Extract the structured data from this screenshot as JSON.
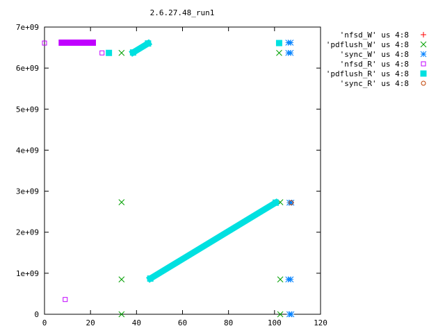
{
  "chart_data": {
    "type": "scatter",
    "title": "2.6.27.48_run1",
    "xlim": [
      0,
      120
    ],
    "ylim": [
      0,
      7000000000
    ],
    "xticks": [
      0,
      20,
      40,
      60,
      80,
      100,
      120
    ],
    "xtick_labels": [
      "0",
      "20",
      "40",
      "60",
      "80",
      "100",
      "120"
    ],
    "yticks": [
      0,
      1000000000,
      2000000000,
      3000000000,
      4000000000,
      5000000000,
      6000000000,
      7000000000
    ],
    "ytick_labels": [
      "0",
      "1e+09",
      "2e+09",
      "3e+09",
      "4e+09",
      "5e+09",
      "6e+09",
      "7e+09"
    ],
    "xlabel": "",
    "ylabel": "",
    "grid": false,
    "legend_position": "outside-top-right",
    "series": [
      {
        "name": "'nfsd_W' us 4:8",
        "marker": "plus",
        "color": "#ff0000",
        "points": [
          [
            107.3,
            2720000000
          ]
        ]
      },
      {
        "name": "'pdflush_W' us 4:8",
        "marker": "cross",
        "color": "#00a000",
        "points": [
          [
            33.5,
            6370000000
          ],
          [
            33.5,
            2730000000
          ],
          [
            33.5,
            850000000
          ],
          [
            33.5,
            0
          ],
          [
            102,
            6370000000
          ],
          [
            102.5,
            2730000000
          ],
          [
            102.5,
            850000000
          ],
          [
            102.5,
            0
          ]
        ]
      },
      {
        "name": "'sync_W' us 4:8",
        "marker": "star",
        "color": "#0080ff",
        "points": [
          [
            106,
            6620000000
          ],
          [
            107,
            6620000000
          ],
          [
            106,
            6370000000
          ],
          [
            107,
            6370000000
          ],
          [
            106.5,
            2720000000
          ],
          [
            107.3,
            2720000000
          ],
          [
            106,
            850000000
          ],
          [
            107,
            850000000
          ],
          [
            106.5,
            0
          ],
          [
            107.3,
            0
          ]
        ]
      },
      {
        "name": "'nfsd_R' us 4:8",
        "marker": "open-square",
        "color": "#c000ff",
        "points": [
          [
            0,
            6610000000
          ],
          [
            8,
            6620000000
          ],
          [
            9,
            6620000000
          ],
          [
            10,
            6620000000
          ],
          [
            11,
            6620000000
          ],
          [
            12,
            6620000000
          ],
          [
            13,
            6620000000
          ],
          [
            14,
            6620000000
          ],
          [
            15,
            6620000000
          ],
          [
            16,
            6620000000
          ],
          [
            17,
            6620000000
          ],
          [
            18,
            6620000000
          ],
          [
            19,
            6620000000
          ],
          [
            20,
            6620000000
          ],
          [
            21,
            6620000000
          ],
          [
            25,
            6370000000
          ],
          [
            9,
            360000000
          ]
        ]
      },
      {
        "name": "'pdflush_R' us 4:8",
        "marker": "filled-square",
        "color": "#00e0e0",
        "points": [
          [
            28,
            6370000000
          ],
          [
            38.5,
            6380000000
          ],
          [
            45,
            6600000000
          ],
          [
            46,
            870000000
          ],
          [
            100.5,
            2720000000
          ],
          [
            102,
            6610000000
          ]
        ]
      },
      {
        "name": "'sync_R' us 4:8",
        "marker": "open-circle",
        "color": "#c04000",
        "points": [
          [
            107.2,
            2720000000
          ]
        ]
      }
    ],
    "segments": [
      {
        "series": "'nfsd_R' us 4:8",
        "from": [
          7.5,
          6620000000
        ],
        "to": [
          21,
          6620000000
        ],
        "width": 9
      },
      {
        "series": "'pdflush_R' us 4:8",
        "from": [
          38.5,
          6380000000
        ],
        "to": [
          45,
          6600000000
        ],
        "width": 9
      },
      {
        "series": "'pdflush_R' us 4:8",
        "from": [
          46,
          870000000
        ],
        "to": [
          100.5,
          2720000000
        ],
        "width": 9
      }
    ]
  }
}
